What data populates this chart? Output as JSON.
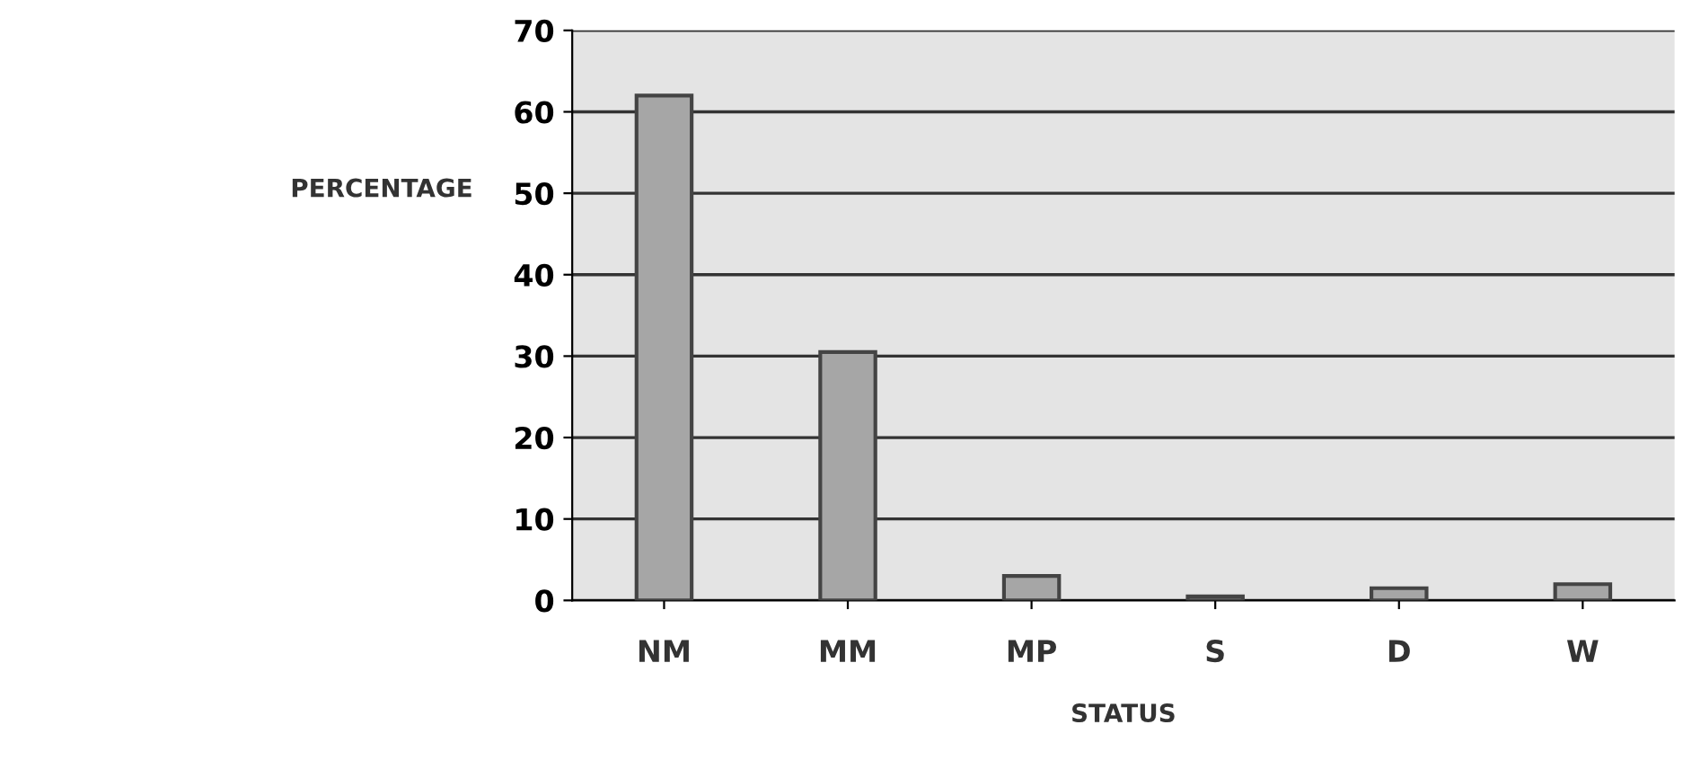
{
  "chart_data": {
    "type": "bar",
    "xlabel": "STATUS",
    "ylabel": "PERCENTAGE",
    "categories": [
      "NM",
      "MM",
      "MP",
      "S",
      "D",
      "W"
    ],
    "values": [
      62,
      30.5,
      3,
      0.5,
      1.5,
      2
    ],
    "color": "#a6a6a6",
    "ylim": [
      0,
      70
    ],
    "yticks": [
      0,
      10,
      20,
      30,
      40,
      50,
      60,
      70
    ],
    "grid": "y"
  }
}
